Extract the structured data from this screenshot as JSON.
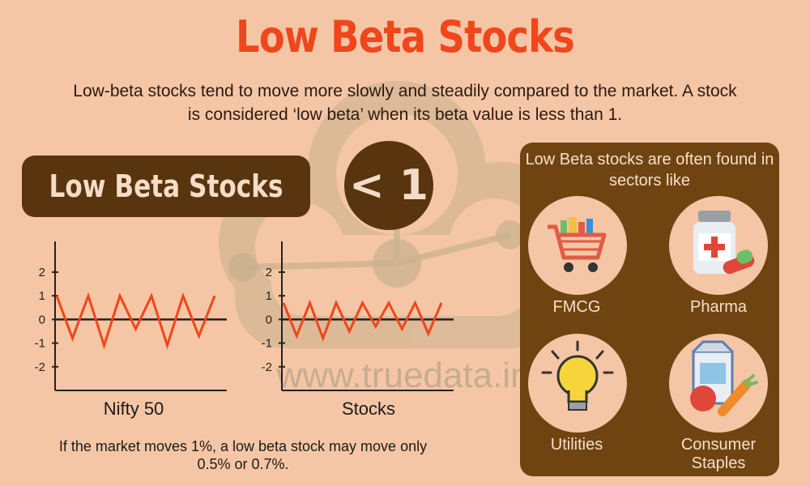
{
  "title": "Low Beta Stocks",
  "subtitle": "Low-beta stocks tend to move more slowly and steadily compared to the market. A stock is considered ‘low beta’ when its beta value is less than 1.",
  "badge": "Low Beta Stocks",
  "beta_threshold": "< 1",
  "watermark": "www.truedata.in",
  "note": "If the market moves 1%, a low beta stock may move only 0.5% or 0.7%.",
  "panel": {
    "title": "Low Beta stocks are often found in sectors like",
    "sectors": [
      {
        "label": "FMCG",
        "icon": "shopping-cart-icon"
      },
      {
        "label": "Pharma",
        "icon": "medicine-bottle-icon"
      },
      {
        "label": "Utilities",
        "icon": "light-bulb-icon"
      },
      {
        "label": "Consumer Staples",
        "icon": "milk-carton-fruit-icon"
      }
    ]
  },
  "colors": {
    "background": "#f5c6a5",
    "title": "#f0461c",
    "dark_brown": "#58340f",
    "panel": "#6f4410",
    "line": "#f0461c"
  },
  "chart_data": [
    {
      "type": "line",
      "xlabel": "Nifty 50",
      "yticks": [
        "2",
        "1",
        "0",
        "-1",
        "-2"
      ],
      "ylim": [
        -3,
        3.3
      ],
      "grid": false,
      "values": [
        1,
        -0.8,
        1,
        -1.1,
        1,
        -0.4,
        1,
        -1.1,
        1,
        -0.7,
        1
      ]
    },
    {
      "type": "line",
      "xlabel": "Stocks",
      "yticks": [
        "2",
        "1",
        "0",
        "-1",
        "-2"
      ],
      "ylim": [
        -3,
        3.3
      ],
      "grid": false,
      "values": [
        0.7,
        -0.7,
        0.7,
        -0.8,
        0.7,
        -0.5,
        0.7,
        -0.3,
        0.7,
        -0.4,
        0.7,
        -0.6,
        0.7
      ]
    }
  ]
}
